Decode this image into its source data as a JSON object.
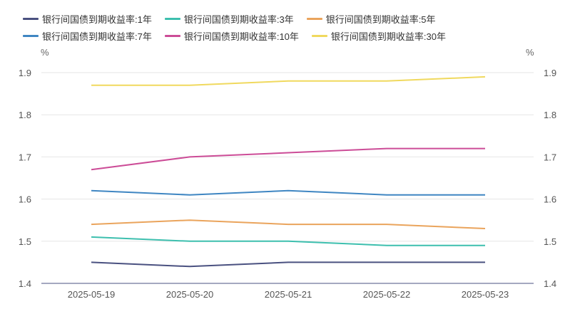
{
  "chart_data": {
    "type": "line",
    "title": "",
    "xlabel": "",
    "ylabel": "%",
    "y2label": "%",
    "x": [
      "2025-05-19",
      "2025-05-20",
      "2025-05-21",
      "2025-05-22",
      "2025-05-23"
    ],
    "ylim": [
      1.4,
      1.9
    ],
    "yticks": [
      "1.4",
      "1.5",
      "1.6",
      "1.7",
      "1.8",
      "1.9"
    ],
    "grid": true,
    "legend_position": "top-left",
    "series": [
      {
        "name": "银行间国债到期收益率:1年",
        "color": "#4a5180",
        "values": [
          1.45,
          1.44,
          1.45,
          1.45,
          1.45
        ]
      },
      {
        "name": "银行间国债到期收益率:3年",
        "color": "#3dbfae",
        "values": [
          1.51,
          1.5,
          1.5,
          1.49,
          1.49
        ]
      },
      {
        "name": "银行间国债到期收益率:5年",
        "color": "#eaa45c",
        "values": [
          1.54,
          1.55,
          1.54,
          1.54,
          1.53
        ]
      },
      {
        "name": "银行间国债到期收益率:7年",
        "color": "#3f86c2",
        "values": [
          1.62,
          1.61,
          1.62,
          1.61,
          1.61
        ]
      },
      {
        "name": "银行间国债到期收益率:10年",
        "color": "#cc4c97",
        "values": [
          1.67,
          1.7,
          1.71,
          1.72,
          1.72
        ]
      },
      {
        "name": "银行间国债到期收益率:30年",
        "color": "#f0d95e",
        "values": [
          1.87,
          1.87,
          1.88,
          1.88,
          1.89
        ]
      }
    ]
  }
}
